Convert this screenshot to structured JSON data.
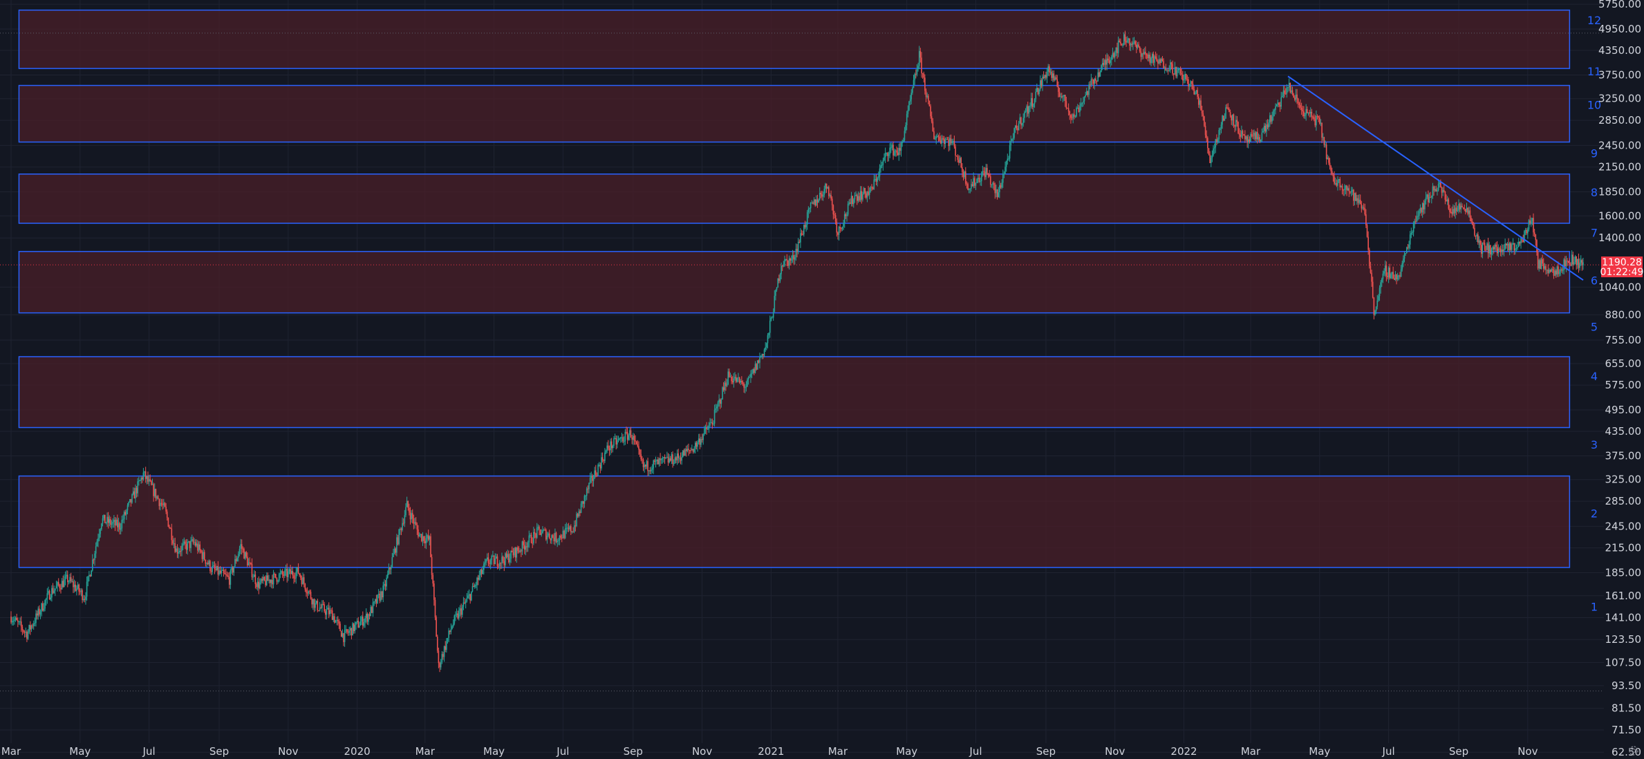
{
  "chart_data": {
    "type": "candlestick",
    "y_scale": "log",
    "ylim": [
      60,
      5900
    ],
    "x_range": [
      "2019-03-01",
      "2022-12-20"
    ],
    "grid": true,
    "y_ticks": [
      5750.0,
      4950.0,
      4350.0,
      3750.0,
      3250.0,
      2850.0,
      2450.0,
      2150.0,
      1850.0,
      1600.0,
      1400.0,
      1040.0,
      880.0,
      755.0,
      655.0,
      575.0,
      495.0,
      435.0,
      375.0,
      325.0,
      285.0,
      245.0,
      215.0,
      185.0,
      161.0,
      141.0,
      123.5,
      107.5,
      93.5,
      81.5,
      71.5,
      62.5
    ],
    "y_tick_labels": [
      "5750.00",
      "4950.00",
      "4350.00",
      "3750.00",
      "3250.00",
      "2850.00",
      "2450.00",
      "2150.00",
      "1850.00",
      "1600.00",
      "1400.00",
      "1040.00",
      "880.00",
      "755.00",
      "655.00",
      "575.00",
      "495.00",
      "435.00",
      "375.00",
      "325.00",
      "285.00",
      "245.00",
      "215.00",
      "185.00",
      "161.00",
      "141.00",
      "123.50",
      "107.50",
      "93.50",
      "81.50",
      "71.50",
      "62.50"
    ],
    "x_ticks": [
      {
        "label": "Mar",
        "date": "2019-03-01"
      },
      {
        "label": "May",
        "date": "2019-05-01"
      },
      {
        "label": "Jul",
        "date": "2019-07-01"
      },
      {
        "label": "Sep",
        "date": "2019-09-01"
      },
      {
        "label": "Nov",
        "date": "2019-11-01"
      },
      {
        "label": "2020",
        "date": "2020-01-01"
      },
      {
        "label": "Mar",
        "date": "2020-03-01"
      },
      {
        "label": "May",
        "date": "2020-05-01"
      },
      {
        "label": "Jul",
        "date": "2020-07-01"
      },
      {
        "label": "Sep",
        "date": "2020-09-01"
      },
      {
        "label": "Nov",
        "date": "2020-11-01"
      },
      {
        "label": "2021",
        "date": "2021-01-01"
      },
      {
        "label": "Mar",
        "date": "2021-03-01"
      },
      {
        "label": "May",
        "date": "2021-05-01"
      },
      {
        "label": "Jul",
        "date": "2021-07-01"
      },
      {
        "label": "Sep",
        "date": "2021-09-01"
      },
      {
        "label": "Nov",
        "date": "2021-11-01"
      },
      {
        "label": "2022",
        "date": "2022-01-01"
      },
      {
        "label": "Mar",
        "date": "2022-03-01"
      },
      {
        "label": "May",
        "date": "2022-05-01"
      },
      {
        "label": "Jul",
        "date": "2022-07-01"
      },
      {
        "label": "Sep",
        "date": "2022-09-01"
      },
      {
        "label": "Nov",
        "date": "2022-11-01"
      }
    ],
    "zones": [
      {
        "lower": 191,
        "upper": 332
      },
      {
        "lower": 445,
        "upper": 683
      },
      {
        "lower": 890,
        "upper": 1290
      },
      {
        "lower": 1530,
        "upper": 2060
      },
      {
        "lower": 2500,
        "upper": 3520
      },
      {
        "lower": 3900,
        "upper": 5550
      }
    ],
    "zone_start": "2019-03-08",
    "zone_end": "2022-12-08",
    "level_labels": [
      {
        "label": "1",
        "price": 150
      },
      {
        "label": "2",
        "price": 264
      },
      {
        "label": "3",
        "price": 400
      },
      {
        "label": "4",
        "price": 605
      },
      {
        "label": "5",
        "price": 815
      },
      {
        "label": "6",
        "price": 1080
      },
      {
        "label": "7",
        "price": 1440
      },
      {
        "label": "8",
        "price": 1840
      },
      {
        "label": "9",
        "price": 2330
      },
      {
        "label": "10",
        "price": 3120
      },
      {
        "label": "11",
        "price": 3820
      },
      {
        "label": "12",
        "price": 5200
      }
    ],
    "trendline": {
      "start": {
        "date": "2022-04-03",
        "price": 3720
      },
      "end": {
        "date": "2022-12-20",
        "price": 1085
      }
    },
    "dotted_levels": [
      4830,
      1190.28,
      90.5
    ],
    "price_series": [
      {
        "date": "2019-03-01",
        "price": 142
      },
      {
        "date": "2019-03-15",
        "price": 128
      },
      {
        "date": "2019-04-05",
        "price": 165
      },
      {
        "date": "2019-04-20",
        "price": 178
      },
      {
        "date": "2019-05-05",
        "price": 160
      },
      {
        "date": "2019-05-20",
        "price": 255
      },
      {
        "date": "2019-06-05",
        "price": 245
      },
      {
        "date": "2019-06-26",
        "price": 336
      },
      {
        "date": "2019-07-15",
        "price": 270
      },
      {
        "date": "2019-07-25",
        "price": 212
      },
      {
        "date": "2019-08-10",
        "price": 222
      },
      {
        "date": "2019-08-25",
        "price": 190
      },
      {
        "date": "2019-09-10",
        "price": 178
      },
      {
        "date": "2019-09-20",
        "price": 218
      },
      {
        "date": "2019-10-05",
        "price": 172
      },
      {
        "date": "2019-10-25",
        "price": 182
      },
      {
        "date": "2019-11-10",
        "price": 186
      },
      {
        "date": "2019-11-25",
        "price": 152
      },
      {
        "date": "2019-12-10",
        "price": 144
      },
      {
        "date": "2019-12-20",
        "price": 126
      },
      {
        "date": "2020-01-10",
        "price": 142
      },
      {
        "date": "2020-01-25",
        "price": 168
      },
      {
        "date": "2020-02-14",
        "price": 278
      },
      {
        "date": "2020-02-25",
        "price": 232
      },
      {
        "date": "2020-03-05",
        "price": 225
      },
      {
        "date": "2020-03-13",
        "price": 105
      },
      {
        "date": "2020-03-25",
        "price": 135
      },
      {
        "date": "2020-04-10",
        "price": 162
      },
      {
        "date": "2020-04-25",
        "price": 198
      },
      {
        "date": "2020-05-10",
        "price": 200
      },
      {
        "date": "2020-05-25",
        "price": 215
      },
      {
        "date": "2020-06-10",
        "price": 238
      },
      {
        "date": "2020-06-25",
        "price": 228
      },
      {
        "date": "2020-07-10",
        "price": 242
      },
      {
        "date": "2020-07-25",
        "price": 318
      },
      {
        "date": "2020-08-10",
        "price": 395
      },
      {
        "date": "2020-08-30",
        "price": 430
      },
      {
        "date": "2020-09-10",
        "price": 350
      },
      {
        "date": "2020-09-25",
        "price": 360
      },
      {
        "date": "2020-10-10",
        "price": 370
      },
      {
        "date": "2020-10-25",
        "price": 395
      },
      {
        "date": "2020-11-10",
        "price": 460
      },
      {
        "date": "2020-11-24",
        "price": 610
      },
      {
        "date": "2020-12-10",
        "price": 570
      },
      {
        "date": "2020-12-28",
        "price": 735
      },
      {
        "date": "2021-01-10",
        "price": 1200
      },
      {
        "date": "2021-01-20",
        "price": 1230
      },
      {
        "date": "2021-02-05",
        "price": 1680
      },
      {
        "date": "2021-02-20",
        "price": 1930
      },
      {
        "date": "2021-03-01",
        "price": 1450
      },
      {
        "date": "2021-03-15",
        "price": 1800
      },
      {
        "date": "2021-03-30",
        "price": 1850
      },
      {
        "date": "2021-04-15",
        "price": 2400
      },
      {
        "date": "2021-04-25",
        "price": 2350
      },
      {
        "date": "2021-05-12",
        "price": 4200
      },
      {
        "date": "2021-05-25",
        "price": 2600
      },
      {
        "date": "2021-06-10",
        "price": 2500
      },
      {
        "date": "2021-06-25",
        "price": 1900
      },
      {
        "date": "2021-07-10",
        "price": 2100
      },
      {
        "date": "2021-07-20",
        "price": 1800
      },
      {
        "date": "2021-08-05",
        "price": 2700
      },
      {
        "date": "2021-08-20",
        "price": 3200
      },
      {
        "date": "2021-09-03",
        "price": 3900
      },
      {
        "date": "2021-09-15",
        "price": 3300
      },
      {
        "date": "2021-09-25",
        "price": 2900
      },
      {
        "date": "2021-10-10",
        "price": 3500
      },
      {
        "date": "2021-10-25",
        "price": 4100
      },
      {
        "date": "2021-11-10",
        "price": 4700
      },
      {
        "date": "2021-11-25",
        "price": 4300
      },
      {
        "date": "2021-12-05",
        "price": 4100
      },
      {
        "date": "2021-12-20",
        "price": 3950
      },
      {
        "date": "2022-01-05",
        "price": 3600
      },
      {
        "date": "2022-01-15",
        "price": 3200
      },
      {
        "date": "2022-01-24",
        "price": 2250
      },
      {
        "date": "2022-02-08",
        "price": 3100
      },
      {
        "date": "2022-02-24",
        "price": 2500
      },
      {
        "date": "2022-03-10",
        "price": 2600
      },
      {
        "date": "2022-03-25",
        "price": 3100
      },
      {
        "date": "2022-04-03",
        "price": 3520
      },
      {
        "date": "2022-04-15",
        "price": 3050
      },
      {
        "date": "2022-05-01",
        "price": 2800
      },
      {
        "date": "2022-05-12",
        "price": 2000
      },
      {
        "date": "2022-05-25",
        "price": 1900
      },
      {
        "date": "2022-06-10",
        "price": 1650
      },
      {
        "date": "2022-06-18",
        "price": 900
      },
      {
        "date": "2022-06-28",
        "price": 1150
      },
      {
        "date": "2022-07-10",
        "price": 1100
      },
      {
        "date": "2022-07-25",
        "price": 1600
      },
      {
        "date": "2022-08-14",
        "price": 1950
      },
      {
        "date": "2022-08-25",
        "price": 1650
      },
      {
        "date": "2022-09-08",
        "price": 1700
      },
      {
        "date": "2022-09-20",
        "price": 1320
      },
      {
        "date": "2022-10-10",
        "price": 1300
      },
      {
        "date": "2022-10-25",
        "price": 1350
      },
      {
        "date": "2022-11-05",
        "price": 1580
      },
      {
        "date": "2022-11-10",
        "price": 1200
      },
      {
        "date": "2022-11-25",
        "price": 1150
      },
      {
        "date": "2022-12-10",
        "price": 1230
      },
      {
        "date": "2022-12-20",
        "price": 1190
      }
    ]
  },
  "current_price": {
    "value": 1190.28,
    "value_label": "1190.28",
    "countdown": "01:22:49"
  },
  "colors": {
    "background": "#131722",
    "grid": "#1f2331",
    "zone_fill": "#4a1f28",
    "zone_border": "#2962ff",
    "trendline": "#2962ff",
    "candle_up": "#26a69a",
    "candle_down": "#ef5350",
    "price_tag": "#f23645",
    "axis_text": "#d1d4dc",
    "level_label": "#2962ff"
  },
  "icons": {
    "settings": "gear-icon"
  }
}
